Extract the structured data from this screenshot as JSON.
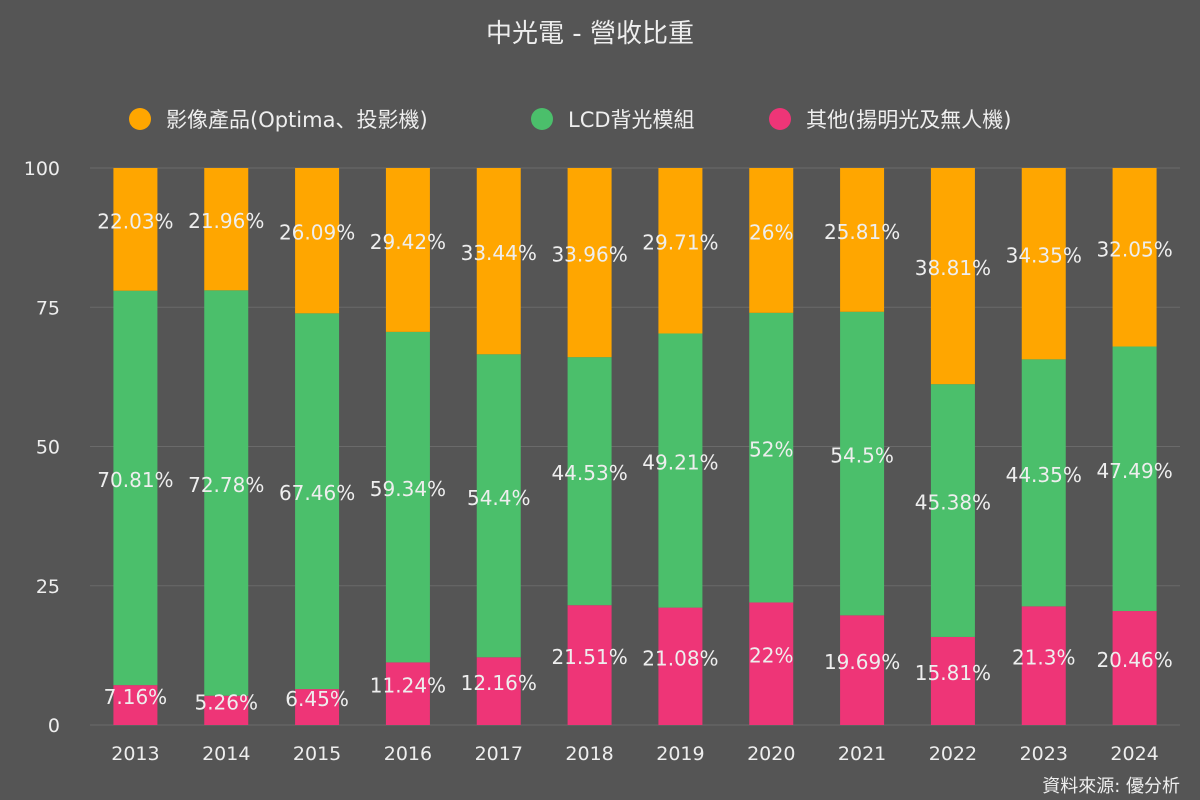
{
  "chart_data": {
    "type": "bar",
    "stacked": true,
    "title": "中光電 - 營收比重",
    "source": "資料來源: 優分析",
    "categories": [
      "2013",
      "2014",
      "2015",
      "2016",
      "2017",
      "2018",
      "2019",
      "2020",
      "2021",
      "2022",
      "2023",
      "2024"
    ],
    "ylim": [
      0,
      100
    ],
    "yticks": [
      0,
      25,
      50,
      75,
      100
    ],
    "grid": true,
    "legend_position": "top",
    "series": [
      {
        "name": "其他(揚明光及無人機)",
        "color": "#ee3577",
        "values": [
          7.16,
          5.26,
          6.45,
          11.24,
          12.16,
          21.51,
          21.08,
          22,
          19.69,
          15.81,
          21.3,
          20.46
        ]
      },
      {
        "name": "LCD背光模組",
        "color": "#4bbf6b",
        "values": [
          70.81,
          72.78,
          67.46,
          59.34,
          54.4,
          44.53,
          49.21,
          52,
          54.5,
          45.38,
          44.35,
          47.49
        ]
      },
      {
        "name": "影像產品(Optima、投影機)",
        "color": "#ffa600",
        "values": [
          22.03,
          21.96,
          26.09,
          29.42,
          33.44,
          33.96,
          29.71,
          26,
          25.81,
          38.81,
          34.35,
          32.05
        ]
      }
    ],
    "legend_order": [
      2,
      1,
      0
    ]
  }
}
